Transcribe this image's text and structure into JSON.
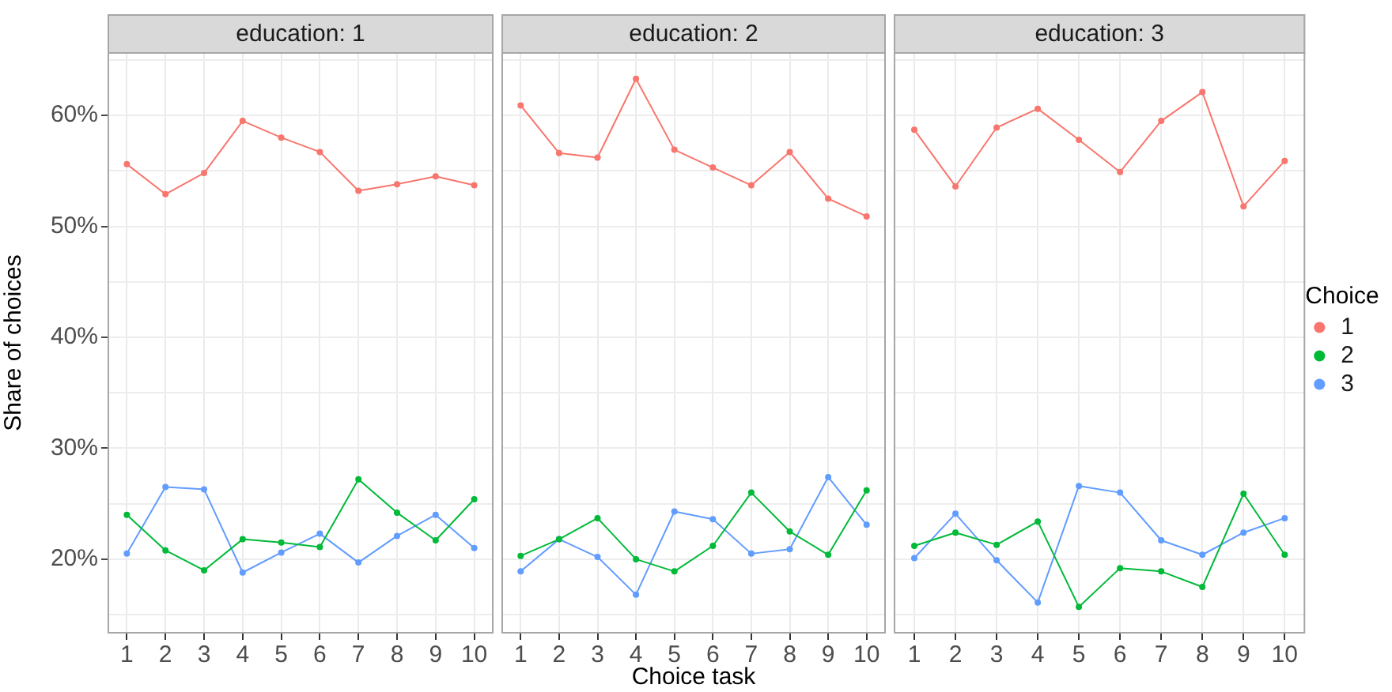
{
  "chart_data": [
    {
      "type": "line",
      "title": "education: 1",
      "ylabel": "Share of choices",
      "categories": [
        "1",
        "2",
        "3",
        "4",
        "5",
        "6",
        "7",
        "8",
        "9",
        "10"
      ],
      "series": [
        {
          "color": "#f8766d",
          "values": [
            55.6,
            52.9,
            54.8,
            59.5,
            58.0,
            56.7,
            53.2,
            53.8,
            54.5,
            53.7
          ]
        },
        {
          "color": "#00ba38",
          "values": [
            24.0,
            20.8,
            19.0,
            21.8,
            21.5,
            21.1,
            27.2,
            24.2,
            21.7,
            25.4
          ]
        },
        {
          "color": "#619cff",
          "values": [
            20.5,
            26.5,
            26.3,
            18.8,
            20.6,
            22.3,
            19.7,
            22.1,
            24.0,
            21.0
          ]
        }
      ],
      "ylim": [
        13.3,
        65.7
      ],
      "yticks": [
        {
          "value": 15,
          "label": null
        },
        {
          "value": 20,
          "label": "20%"
        },
        {
          "value": 25,
          "label": null
        },
        {
          "value": 30,
          "label": "30%"
        },
        {
          "value": 35,
          "label": null
        },
        {
          "value": 40,
          "label": "40%"
        },
        {
          "value": 45,
          "label": null
        },
        {
          "value": 50,
          "label": "50%"
        },
        {
          "value": 55,
          "label": null
        },
        {
          "value": 60,
          "label": "60%"
        },
        {
          "value": 65,
          "label": null
        }
      ],
      "grid": true,
      "marker": "circle",
      "line_style": "solid"
    },
    {
      "type": "line",
      "title": "education: 2",
      "xlabel": "Choice task",
      "categories": [
        "1",
        "2",
        "3",
        "4",
        "5",
        "6",
        "7",
        "8",
        "9",
        "10"
      ],
      "series": [
        {
          "color": "#f8766d",
          "values": [
            60.9,
            56.6,
            56.2,
            63.3,
            56.9,
            55.3,
            53.7,
            56.7,
            52.5,
            50.9
          ]
        },
        {
          "color": "#00ba38",
          "values": [
            20.3,
            21.8,
            23.7,
            20.0,
            18.9,
            21.2,
            26.0,
            22.5,
            20.4,
            26.2
          ]
        },
        {
          "color": "#619cff",
          "values": [
            18.9,
            21.8,
            20.2,
            16.8,
            24.3,
            23.6,
            20.5,
            20.9,
            27.4,
            23.1
          ]
        }
      ],
      "ylim": [
        13.3,
        65.7
      ],
      "yticks": [
        {
          "value": 15,
          "label": null
        },
        {
          "value": 20,
          "label": null
        },
        {
          "value": 25,
          "label": null
        },
        {
          "value": 30,
          "label": null
        },
        {
          "value": 35,
          "label": null
        },
        {
          "value": 40,
          "label": null
        },
        {
          "value": 45,
          "label": null
        },
        {
          "value": 50,
          "label": null
        },
        {
          "value": 55,
          "label": null
        },
        {
          "value": 60,
          "label": null
        },
        {
          "value": 65,
          "label": null
        }
      ],
      "tick_labels": "x",
      "grid": true,
      "marker": "circle",
      "line_style": "solid"
    },
    {
      "type": "line",
      "title": "education: 3",
      "legend_title": "Choice",
      "legend": "right",
      "categories": [
        "1",
        "2",
        "3",
        "4",
        "5",
        "6",
        "7",
        "8",
        "9",
        "10"
      ],
      "series": [
        {
          "name": "1",
          "color": "#f8766d",
          "values": [
            58.7,
            53.6,
            58.9,
            60.6,
            57.8,
            54.9,
            59.5,
            62.1,
            51.8,
            55.9
          ]
        },
        {
          "name": "2",
          "color": "#00ba38",
          "values": [
            21.2,
            22.4,
            21.3,
            23.4,
            15.7,
            19.2,
            18.9,
            17.5,
            25.9,
            20.4
          ]
        },
        {
          "name": "3",
          "color": "#619cff",
          "values": [
            20.1,
            24.1,
            19.9,
            16.1,
            26.6,
            26.0,
            21.7,
            20.4,
            22.4,
            23.7
          ]
        }
      ],
      "ylim": [
        13.3,
        65.7
      ],
      "yticks": [
        {
          "value": 15,
          "label": null
        },
        {
          "value": 20,
          "label": null
        },
        {
          "value": 25,
          "label": null
        },
        {
          "value": 30,
          "label": null
        },
        {
          "value": 35,
          "label": null
        },
        {
          "value": 40,
          "label": null
        },
        {
          "value": 45,
          "label": null
        },
        {
          "value": 50,
          "label": null
        },
        {
          "value": 55,
          "label": null
        },
        {
          "value": 60,
          "label": null
        },
        {
          "value": 65,
          "label": null
        }
      ],
      "tick_labels": "x",
      "grid": true,
      "marker": "circle",
      "line_style": "solid"
    }
  ]
}
